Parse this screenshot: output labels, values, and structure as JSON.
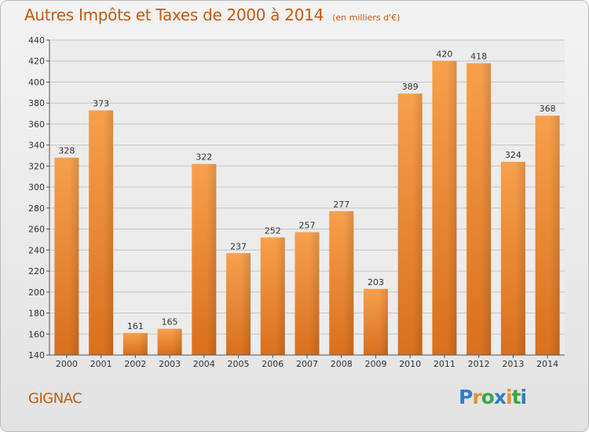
{
  "title": "Autres Impôts et Taxes de 2000 à 2014",
  "subtitle": "(en milliers d'€)",
  "city": "GIGNAC",
  "logo": "Proxiti",
  "chart_data": {
    "type": "bar",
    "categories": [
      "2000",
      "2001",
      "2002",
      "2003",
      "2004",
      "2005",
      "2006",
      "2007",
      "2008",
      "2009",
      "2010",
      "2011",
      "2012",
      "2013",
      "2014"
    ],
    "values": [
      328,
      373,
      161,
      165,
      322,
      237,
      252,
      257,
      277,
      203,
      389,
      420,
      418,
      324,
      368
    ],
    "ylim": [
      140,
      440
    ],
    "yticks": [
      140,
      160,
      180,
      200,
      220,
      240,
      260,
      280,
      300,
      320,
      340,
      360,
      380,
      400,
      420,
      440
    ],
    "grid": true,
    "bar_color": "#f0913a"
  }
}
